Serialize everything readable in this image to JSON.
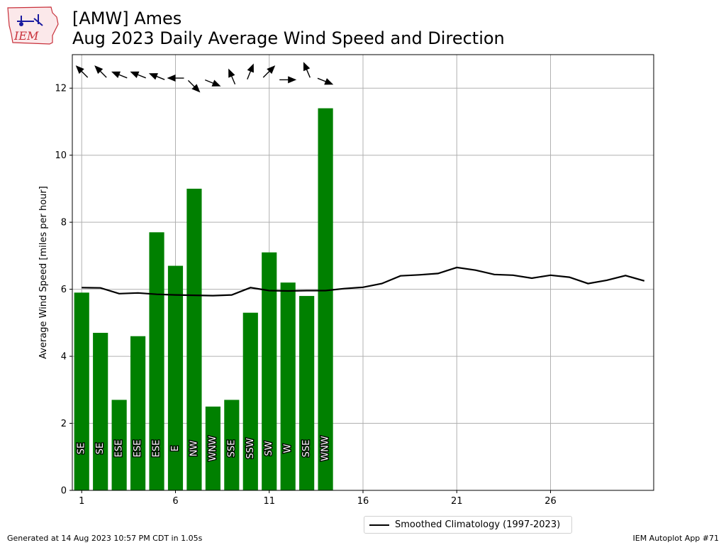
{
  "header": {
    "title": "[AMW] Ames",
    "subtitle": "Aug 2023 Daily Average Wind Speed and Direction"
  },
  "logo": {
    "text": "IEM"
  },
  "footer": {
    "generated": "Generated at 14 Aug 2023 10:57 PM CDT in 1.05s",
    "app": "IEM Autoplot App #71"
  },
  "colors": {
    "bar": "#008000",
    "climatology": "#000000",
    "grid": "#b0b0b0"
  },
  "chart_data": {
    "type": "bar",
    "ylabel": "Average Wind Speed [miles per hour]",
    "xlim": [
      0.5,
      31.5
    ],
    "ylim": [
      0,
      13
    ],
    "xticks": [
      1,
      6,
      11,
      16,
      21,
      26
    ],
    "yticks": [
      0,
      2,
      4,
      6,
      8,
      10,
      12
    ],
    "grid": true,
    "legend_position": "bottom",
    "days": [
      1,
      2,
      3,
      4,
      5,
      6,
      7,
      8,
      9,
      10,
      11,
      12,
      13,
      14
    ],
    "speeds": [
      5.9,
      4.7,
      2.7,
      4.6,
      7.7,
      6.7,
      9.0,
      2.5,
      2.7,
      5.3,
      7.1,
      6.2,
      5.8,
      11.4
    ],
    "directions": [
      "SE",
      "SE",
      "ESE",
      "ESE",
      "ESE",
      "E",
      "NW",
      "WNW",
      "SSE",
      "SSW",
      "SW",
      "W",
      "SSE",
      "WNW"
    ],
    "wind_from_degrees": [
      135,
      135,
      112,
      112,
      112,
      90,
      315,
      292,
      157,
      202,
      225,
      270,
      157,
      292
    ],
    "climatology": {
      "name": "Smoothed Climatology (1997-2023)",
      "x": [
        1,
        2,
        3,
        4,
        5,
        6,
        7,
        8,
        9,
        10,
        11,
        12,
        13,
        14,
        15,
        16,
        17,
        18,
        19,
        20,
        21,
        22,
        23,
        24,
        25,
        26,
        27,
        28,
        29,
        30,
        31
      ],
      "y": [
        6.05,
        6.04,
        5.87,
        5.89,
        5.85,
        5.83,
        5.82,
        5.81,
        5.83,
        6.05,
        5.96,
        5.95,
        5.96,
        5.96,
        6.02,
        6.06,
        6.17,
        6.4,
        6.43,
        6.47,
        6.65,
        6.57,
        6.44,
        6.42,
        6.33,
        6.42,
        6.36,
        6.17,
        6.27,
        6.41,
        6.25
      ]
    }
  }
}
